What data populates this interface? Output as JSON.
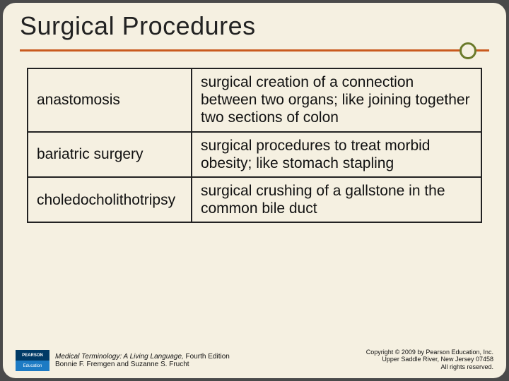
{
  "title": "Surgical Procedures",
  "accent_color": "#c95a1e",
  "circle_color": "#6a7a2a",
  "table": {
    "rows": [
      {
        "term": "anastomosis",
        "definition": "surgical creation of a connection between two organs; like joining together two sections of colon"
      },
      {
        "term": "bariatric surgery",
        "definition": "surgical procedures to treat morbid obesity; like stomach stapling"
      },
      {
        "term": "choledocholithotripsy",
        "definition": "surgical crushing of a gallstone in the common bile duct"
      }
    ]
  },
  "footer": {
    "logo_top": "PEARSON",
    "logo_bottom": "Education",
    "book_title_italic": "Medical Terminology: A Living Language,",
    "book_edition": " Fourth Edition",
    "authors": "Bonnie F. Fremgen and Suzanne S. Frucht",
    "copyright_line1": "Copyright © 2009 by Pearson Education, Inc.",
    "copyright_line2": "Upper Saddle River, New Jersey 07458",
    "copyright_line3": "All rights reserved."
  }
}
